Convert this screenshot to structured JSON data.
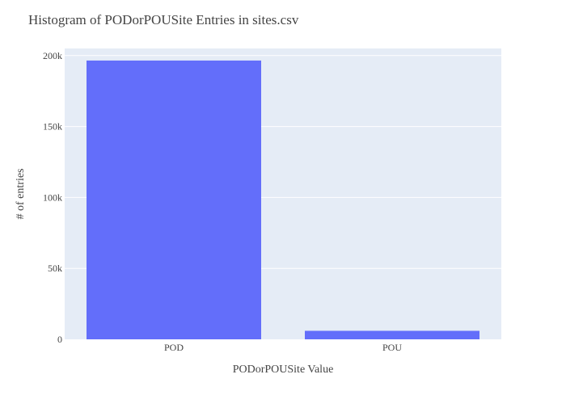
{
  "chart_data": {
    "type": "bar",
    "title": "Histogram of PODorPOUSite Entries in sites.csv",
    "xlabel": "PODorPOUSite Value",
    "ylabel": "# of entries",
    "categories": [
      "POD",
      "POU"
    ],
    "values": [
      196500,
      6000
    ],
    "ylim": [
      0,
      205000
    ],
    "yticks": [
      0,
      50000,
      100000,
      150000,
      200000
    ],
    "ytick_labels": [
      "0",
      "50k",
      "100k",
      "150k",
      "200k"
    ],
    "grid": true,
    "colors": {
      "bar": "#636efa",
      "plot_background": "#e5ecf6",
      "grid": "#ffffff",
      "text": "#444444"
    }
  }
}
